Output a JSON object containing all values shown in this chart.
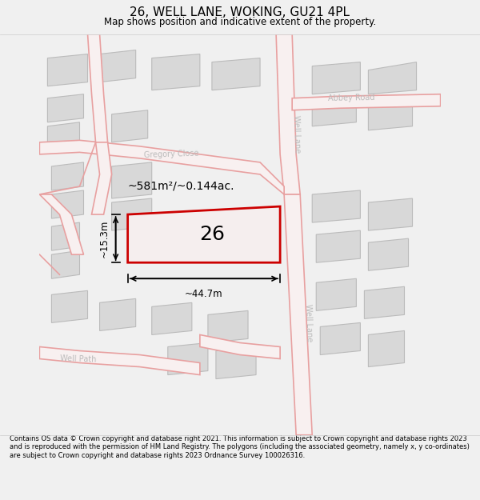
{
  "title": "26, WELL LANE, WOKING, GU21 4PL",
  "subtitle": "Map shows position and indicative extent of the property.",
  "footer": "Contains OS data © Crown copyright and database right 2021. This information is subject to Crown copyright and database rights 2023 and is reproduced with the permission of HM Land Registry. The polygons (including the associated geometry, namely x, y co-ordinates) are subject to Crown copyright and database rights 2023 Ordnance Survey 100026316.",
  "background_color": "#f0f0f0",
  "map_background": "#f0f0f0",
  "road_line_color": "#e8a0a0",
  "road_fill_color": "#f8f0f0",
  "building_fill": "#d8d8d8",
  "building_edge": "#bbbbbb",
  "highlight_fill": "#f5eeee",
  "highlight_edge": "#cc0000",
  "highlight_lw": 2.0,
  "area_label": "~581m²/~0.144ac.",
  "plot_number": "26",
  "dim_width": "~44.7m",
  "dim_height": "~15.3m",
  "street_color": "#bbbbbb",
  "title_fontsize": 11,
  "subtitle_fontsize": 8.5,
  "footer_fontsize": 6.0
}
